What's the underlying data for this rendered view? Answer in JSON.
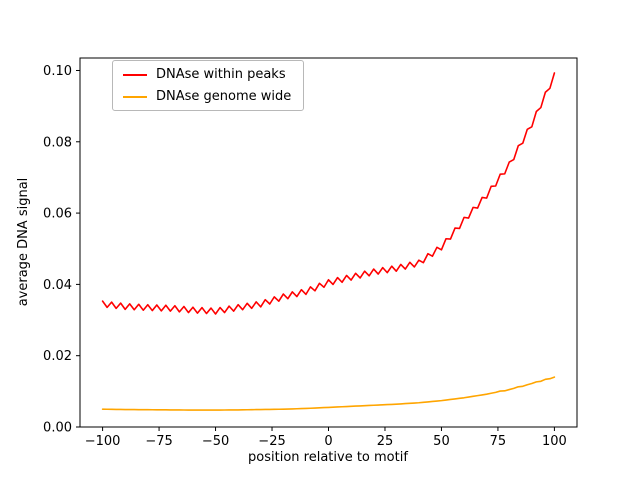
{
  "figure": {
    "background": "#ffffff",
    "text_color": "#000000"
  },
  "chart_data": {
    "type": "line",
    "title": "",
    "xlabel": "position relative to motif",
    "ylabel": "average DNA signal",
    "xlim": [
      -110,
      110
    ],
    "ylim": [
      0,
      0.1035
    ],
    "grid": false,
    "legend_position": "upper left",
    "xticks": [
      -100,
      -75,
      -50,
      -25,
      0,
      25,
      50,
      75,
      100
    ],
    "xtick_labels": [
      "−100",
      "−75",
      "−50",
      "−25",
      "0",
      "25",
      "50",
      "75",
      "100"
    ],
    "yticks": [
      0.0,
      0.02,
      0.04,
      0.06,
      0.08,
      0.1
    ],
    "ytick_labels": [
      "0.00",
      "0.02",
      "0.04",
      "0.06",
      "0.08",
      "0.10"
    ],
    "x": [
      -100,
      -98,
      -96,
      -94,
      -92,
      -90,
      -88,
      -86,
      -84,
      -82,
      -80,
      -78,
      -76,
      -74,
      -72,
      -70,
      -68,
      -66,
      -64,
      -62,
      -60,
      -58,
      -56,
      -54,
      -52,
      -50,
      -48,
      -46,
      -44,
      -42,
      -40,
      -38,
      -36,
      -34,
      -32,
      -30,
      -28,
      -26,
      -24,
      -22,
      -20,
      -18,
      -16,
      -14,
      -12,
      -10,
      -8,
      -6,
      -4,
      -2,
      0,
      2,
      4,
      6,
      8,
      10,
      12,
      14,
      16,
      18,
      20,
      22,
      24,
      26,
      28,
      30,
      32,
      34,
      36,
      38,
      40,
      42,
      44,
      46,
      48,
      50,
      52,
      54,
      56,
      58,
      60,
      62,
      64,
      66,
      68,
      70,
      72,
      74,
      76,
      78,
      80,
      82,
      84,
      86,
      88,
      90,
      92,
      94,
      96,
      98,
      100
    ],
    "series": [
      {
        "name": "DNAse within peaks",
        "color": "#ff0000",
        "values": [
          0.0353,
          0.03356,
          0.03502,
          0.03328,
          0.03474,
          0.033,
          0.03454,
          0.03288,
          0.03442,
          0.03276,
          0.0343,
          0.03266,
          0.03422,
          0.03258,
          0.03414,
          0.0325,
          0.034,
          0.0323,
          0.0338,
          0.0321,
          0.0336,
          0.03194,
          0.03348,
          0.03182,
          0.03336,
          0.0317,
          0.0335,
          0.0321,
          0.0339,
          0.0325,
          0.0343,
          0.0329,
          0.0347,
          0.0333,
          0.0351,
          0.0337,
          0.0357,
          0.0345,
          0.0365,
          0.0353,
          0.0373,
          0.036,
          0.0379,
          0.0366,
          0.0385,
          0.0372,
          0.0393,
          0.0382,
          0.0403,
          0.0392,
          0.0413,
          0.04,
          0.0419,
          0.0406,
          0.0425,
          0.0412,
          0.0431,
          0.0418,
          0.0437,
          0.0424,
          0.0443,
          0.0429,
          0.0447,
          0.0433,
          0.0451,
          0.0437,
          0.0456,
          0.0443,
          0.0462,
          0.0449,
          0.0468,
          0.0461,
          0.0486,
          0.0479,
          0.0504,
          0.0497,
          0.0528,
          0.0527,
          0.0558,
          0.0557,
          0.0588,
          0.0586,
          0.0616,
          0.0614,
          0.0644,
          0.0642,
          0.0675,
          0.0676,
          0.0709,
          0.071,
          0.0743,
          0.075,
          0.0789,
          0.0796,
          0.0835,
          0.0842,
          0.0885,
          0.0896,
          0.0939,
          0.095,
          0.0993
        ]
      },
      {
        "name": "DNAse genome wide",
        "color": "#ffa500",
        "values": [
          0.005,
          0.00498,
          0.00496,
          0.00494,
          0.00492,
          0.0049,
          0.00489,
          0.00488,
          0.00487,
          0.00486,
          0.00485,
          0.00484,
          0.00483,
          0.00482,
          0.00481,
          0.0048,
          0.00479,
          0.00478,
          0.00477,
          0.00476,
          0.00475,
          0.00475,
          0.00475,
          0.00475,
          0.00475,
          0.00475,
          0.00476,
          0.00477,
          0.00478,
          0.00479,
          0.0048,
          0.00482,
          0.00484,
          0.00486,
          0.00488,
          0.0049,
          0.00492,
          0.00494,
          0.00496,
          0.00498,
          0.005,
          0.00504,
          0.00508,
          0.00512,
          0.00516,
          0.0052,
          0.00526,
          0.00532,
          0.00538,
          0.00544,
          0.0055,
          0.00556,
          0.00562,
          0.00568,
          0.00574,
          0.0058,
          0.00586,
          0.00592,
          0.00598,
          0.00604,
          0.0061,
          0.00616,
          0.00622,
          0.00628,
          0.00634,
          0.0064,
          0.00648,
          0.00656,
          0.00664,
          0.00672,
          0.0068,
          0.00692,
          0.00704,
          0.00716,
          0.00728,
          0.0074,
          0.00756,
          0.00772,
          0.00788,
          0.00804,
          0.0082,
          0.0084,
          0.0086,
          0.0088,
          0.009,
          0.0092,
          0.00946,
          0.00972,
          0.01008,
          0.01014,
          0.0105,
          0.01084,
          0.01128,
          0.01142,
          0.01186,
          0.0122,
          0.01266,
          0.01282,
          0.01338,
          0.01354,
          0.014
        ]
      }
    ]
  },
  "legend": {
    "items": [
      {
        "label": "DNAse within peaks"
      },
      {
        "label": "DNAse genome wide"
      }
    ]
  }
}
